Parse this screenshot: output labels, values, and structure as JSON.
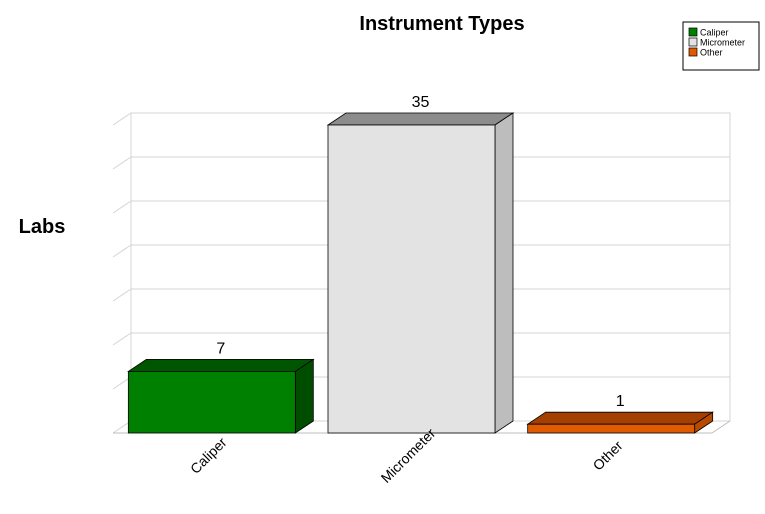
{
  "chart_data": {
    "type": "bar",
    "title": "Instrument Types",
    "xlabel": "",
    "ylabel": "Labs",
    "categories": [
      "Caliper",
      "Micrometer",
      "Other"
    ],
    "values": [
      7,
      35,
      1
    ],
    "ylim": [
      0,
      35
    ],
    "grid": true,
    "legend_position": "top-right",
    "colors": {
      "Caliper": {
        "front": "#008000",
        "top": "#005500",
        "side": "#004d00"
      },
      "Micrometer": {
        "front": "#e3e3e3",
        "top": "#8c8c8c",
        "side": "#bdbdbd"
      },
      "Other": {
        "front": "#e05a00",
        "top": "#a34000",
        "side": "#b84a00"
      }
    }
  }
}
